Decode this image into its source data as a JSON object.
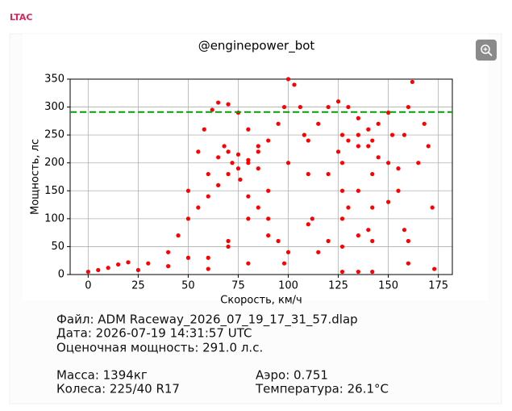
{
  "header": {
    "brand": "LTAC"
  },
  "chart_data": {
    "type": "scatter",
    "title": "@enginepower_bot",
    "x_label": "Скорость, км/ч",
    "y_label": "Мощность, лс",
    "x": [
      0,
      5,
      10,
      15,
      20,
      25,
      30,
      40,
      50,
      60,
      70,
      80,
      90,
      100,
      110,
      120,
      130,
      140,
      150,
      160,
      165,
      168,
      170,
      172,
      173,
      50,
      55,
      58,
      62,
      65,
      70,
      75,
      80,
      85,
      40,
      45,
      50,
      55,
      60,
      65,
      70,
      75,
      80,
      85,
      90,
      95,
      98,
      100,
      103,
      106,
      108,
      110,
      112,
      115,
      60,
      70,
      80,
      90,
      100,
      110,
      115,
      120,
      125,
      130,
      135,
      140,
      145,
      150,
      152,
      155,
      158,
      160,
      120,
      125,
      130,
      135,
      140,
      145,
      150,
      155,
      158,
      160,
      162,
      68,
      72,
      76,
      80,
      85,
      90,
      95,
      98,
      127,
      127,
      127,
      127,
      127,
      127,
      142,
      142,
      142,
      142,
      142,
      135,
      135,
      135,
      135,
      60,
      65,
      70,
      75,
      80,
      85
    ],
    "y": [
      5,
      8,
      12,
      18,
      22,
      8,
      20,
      15,
      30,
      10,
      50,
      20,
      70,
      40,
      90,
      60,
      120,
      80,
      130,
      60,
      200,
      270,
      230,
      120,
      10,
      150,
      220,
      260,
      295,
      308,
      305,
      290,
      260,
      230,
      40,
      70,
      100,
      120,
      140,
      160,
      180,
      190,
      200,
      220,
      240,
      270,
      300,
      350,
      340,
      300,
      250,
      180,
      100,
      40,
      30,
      60,
      100,
      150,
      200,
      240,
      270,
      300,
      310,
      300,
      280,
      260,
      270,
      290,
      250,
      150,
      80,
      20,
      180,
      220,
      240,
      250,
      230,
      210,
      200,
      190,
      250,
      300,
      345,
      230,
      200,
      170,
      140,
      120,
      100,
      60,
      20,
      250,
      200,
      150,
      100,
      50,
      5,
      240,
      180,
      120,
      60,
      5,
      230,
      150,
      70,
      5,
      180,
      210,
      220,
      215,
      205,
      190
    ],
    "color": "#ff0000",
    "reference_line": {
      "value": 291.0,
      "color": "#00a000"
    },
    "xlim": [
      -9,
      182
    ],
    "ylim": [
      0,
      350
    ],
    "xticks": [
      0,
      25,
      50,
      75,
      100,
      125,
      150,
      175
    ],
    "yticks": [
      0,
      50,
      100,
      150,
      200,
      250,
      300,
      350
    ],
    "grid": true
  },
  "info": {
    "file": "Файл: ADM Raceway_2026_07_19_17_31_57.dlap",
    "date": "Дата: 2026-07-19 14:31:57 UTC",
    "power": "Оценочная мощность: 291.0 л.с.",
    "mass": "Масса: 1394кг",
    "aero": "Аэро: 0.751",
    "wheels": "Колеса: 225/40 R17",
    "temperature": "Температура: 26.1°C"
  }
}
